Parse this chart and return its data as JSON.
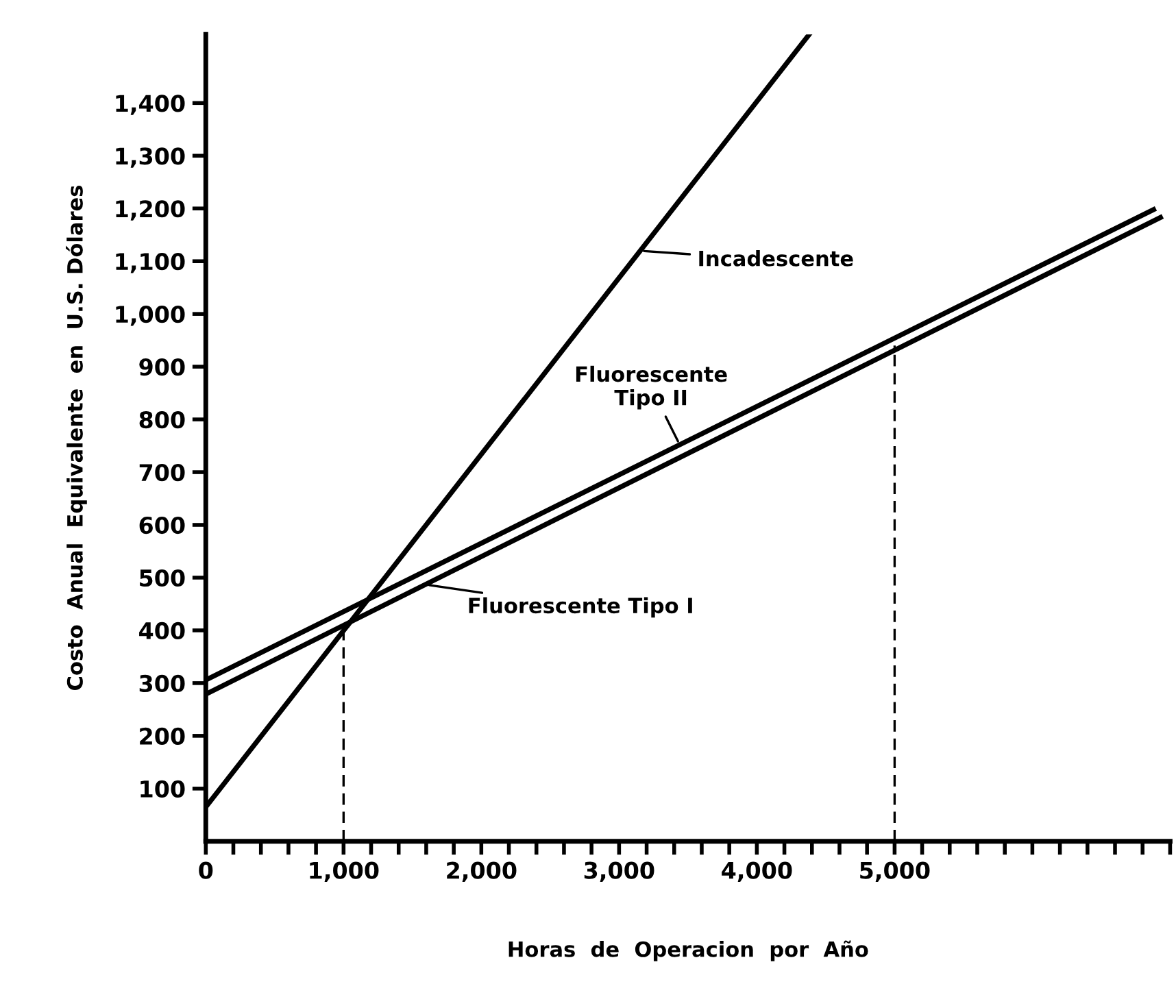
{
  "chart_data": {
    "type": "line",
    "xlabel": "Horas  de  Operacion  por  Año",
    "ylabel": "Costo  Anual  Equivalente  en  U.S. Dólares",
    "xlim": [
      0,
      7000
    ],
    "ylim": [
      0,
      1530
    ],
    "xticks": [
      0,
      {
        "value": 200,
        "label": null
      },
      {
        "value": 400,
        "label": null
      },
      {
        "value": 600,
        "label": null
      },
      {
        "value": 800,
        "label": null
      },
      {
        "value": 1000,
        "label": "1,000"
      },
      {
        "value": 1200,
        "label": null
      },
      {
        "value": 1400,
        "label": null
      },
      {
        "value": 1600,
        "label": null
      },
      {
        "value": 1800,
        "label": null
      },
      {
        "value": 2000,
        "label": "2,000"
      },
      {
        "value": 2200,
        "label": null
      },
      {
        "value": 2400,
        "label": null
      },
      {
        "value": 2600,
        "label": null
      },
      {
        "value": 2800,
        "label": null
      },
      {
        "value": 3000,
        "label": "3,000"
      },
      {
        "value": 3200,
        "label": null
      },
      {
        "value": 3400,
        "label": null
      },
      {
        "value": 3600,
        "label": null
      },
      {
        "value": 3800,
        "label": null
      },
      {
        "value": 4000,
        "label": "4,000"
      },
      {
        "value": 4200,
        "label": null
      },
      {
        "value": 4400,
        "label": null
      },
      {
        "value": 4600,
        "label": null
      },
      {
        "value": 4800,
        "label": null
      },
      {
        "value": 5000,
        "label": "5,000"
      },
      {
        "value": 5200,
        "label": null
      },
      {
        "value": 5400,
        "label": null
      },
      {
        "value": 5600,
        "label": null
      },
      {
        "value": 5800,
        "label": null
      },
      {
        "value": 6000,
        "label": null
      },
      {
        "value": 6200,
        "label": null
      },
      {
        "value": 6400,
        "label": null
      },
      {
        "value": 6600,
        "label": null
      },
      {
        "value": 6800,
        "label": null
      },
      {
        "value": 7000,
        "label": null
      }
    ],
    "yticks": [
      100,
      200,
      300,
      400,
      500,
      600,
      700,
      800,
      900,
      {
        "value": 1000,
        "label": "1,000"
      },
      {
        "value": 1100,
        "label": "1,100"
      },
      {
        "value": 1200,
        "label": "1,200"
      },
      {
        "value": 1300,
        "label": "1,300"
      },
      {
        "value": 1400,
        "label": "1,400"
      }
    ],
    "marker": "none",
    "grid": false,
    "series": [
      {
        "name": "Incadescente",
        "color": "#000000",
        "x": [
          0,
          4380
        ],
        "values": [
          65,
          1530
        ]
      },
      {
        "name": "Fluorescente\nTipo II",
        "color": "#000000",
        "x": [
          0,
          6880
        ],
        "values": [
          306,
          1198
        ]
      },
      {
        "name": "Fluorescente Tipo I",
        "color": "#000000",
        "x": [
          0,
          6930
        ],
        "values": [
          279,
          1183
        ]
      },
      {
        "color": "#000000",
        "x": [
          1000,
          1000
        ],
        "values": [
          0,
          400
        ],
        "line_style": "dashed"
      },
      {
        "color": "#000000",
        "x": [
          5000,
          5000
        ],
        "values": [
          0,
          940
        ],
        "line_style": "dashed"
      }
    ]
  }
}
